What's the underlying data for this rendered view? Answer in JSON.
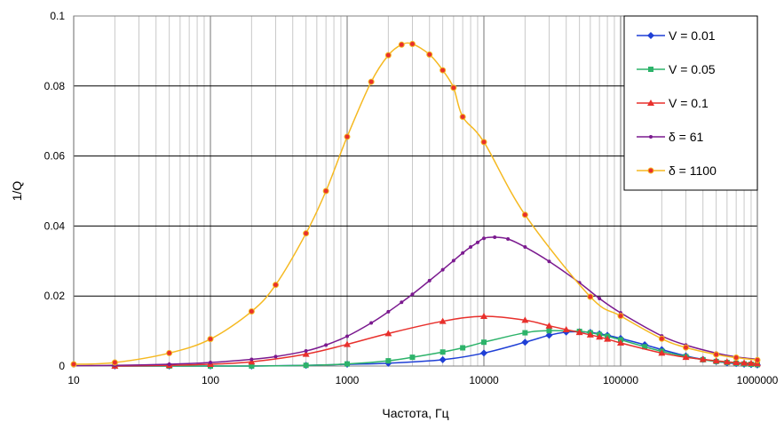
{
  "chart_data": {
    "type": "line",
    "xlabel": "Частота, Гц",
    "ylabel": "1/Q",
    "xscale": "log",
    "xlim": [
      10,
      1000000
    ],
    "ylim": [
      0,
      0.1
    ],
    "x_ticks": [
      "10",
      "100",
      "1000",
      "10000",
      "100000",
      "1000000"
    ],
    "y_ticks": [
      "0",
      "0.02",
      "0.04",
      "0.06",
      "0.08",
      "0.1"
    ],
    "grid": true,
    "legend_position": "top-right",
    "series": [
      {
        "name": "V = 0.01",
        "color": "#1f3fd6",
        "marker": "diamond",
        "x": [
          20,
          50,
          100,
          200,
          500,
          1000,
          2000,
          5000,
          10000,
          20000,
          30000,
          40000,
          50000,
          60000,
          70000,
          80000,
          100000,
          150000,
          200000,
          300000,
          400000,
          500000,
          600000,
          700000,
          800000,
          900000,
          1000000
        ],
        "y": [
          0,
          0,
          0,
          0,
          0.0002,
          0.0005,
          0.0008,
          0.0018,
          0.0037,
          0.0068,
          0.0088,
          0.0097,
          0.0098,
          0.0096,
          0.0092,
          0.0088,
          0.0079,
          0.0061,
          0.0047,
          0.0029,
          0.0019,
          0.0013,
          0.0009,
          0.0007,
          0.0005,
          0.0004,
          0.0003
        ]
      },
      {
        "name": "V = 0.05",
        "color": "#2db36a",
        "marker": "square",
        "x": [
          20,
          50,
          100,
          200,
          500,
          1000,
          2000,
          3000,
          5000,
          7000,
          10000,
          20000,
          30000,
          50000,
          60000,
          70000,
          80000,
          100000,
          150000,
          200000,
          300000,
          400000,
          500000,
          600000,
          700000,
          800000,
          900000,
          1000000
        ],
        "y": [
          0,
          0,
          0,
          0,
          0.0002,
          0.0006,
          0.0015,
          0.0025,
          0.004,
          0.0052,
          0.0068,
          0.0095,
          0.0101,
          0.0099,
          0.0095,
          0.009,
          0.0085,
          0.0075,
          0.0055,
          0.0042,
          0.0027,
          0.0018,
          0.0013,
          0.001,
          0.0008,
          0.0006,
          0.0005,
          0.0004
        ]
      },
      {
        "name": "V = 0.1",
        "color": "#e8302c",
        "marker": "triangle",
        "x": [
          20,
          50,
          100,
          200,
          500,
          1000,
          2000,
          5000,
          10000,
          20000,
          30000,
          40000,
          50000,
          60000,
          70000,
          80000,
          100000,
          200000,
          300000,
          400000,
          500000,
          600000,
          700000,
          800000,
          900000,
          1000000
        ],
        "y": [
          0,
          0.0002,
          0.0005,
          0.0012,
          0.0034,
          0.0062,
          0.0093,
          0.0128,
          0.0142,
          0.0131,
          0.0115,
          0.0104,
          0.0096,
          0.0089,
          0.0083,
          0.0077,
          0.0066,
          0.0037,
          0.0025,
          0.0019,
          0.0015,
          0.0012,
          0.001,
          0.0009,
          0.0008,
          0.0007
        ]
      },
      {
        "name": "δ = 61",
        "color": "#7b1a8f",
        "marker": "dot",
        "x": [
          10,
          20,
          50,
          100,
          200,
          300,
          500,
          700,
          1000,
          1500,
          2000,
          2500,
          3000,
          4000,
          5000,
          6000,
          7000,
          8000,
          9000,
          10000,
          12000,
          15000,
          20000,
          30000,
          50000,
          70000,
          100000,
          200000,
          300000,
          500000,
          700000,
          1000000
        ],
        "y": [
          0.0001,
          0.0002,
          0.0005,
          0.001,
          0.0019,
          0.0027,
          0.0043,
          0.006,
          0.0085,
          0.0123,
          0.0155,
          0.0182,
          0.0205,
          0.0244,
          0.0275,
          0.0301,
          0.0323,
          0.034,
          0.0353,
          0.0365,
          0.0368,
          0.0363,
          0.034,
          0.0299,
          0.0238,
          0.0193,
          0.0152,
          0.0086,
          0.006,
          0.0037,
          0.0026,
          0.0019
        ]
      },
      {
        "name": "δ = 1100",
        "color": "#f5b921",
        "marker": "circle",
        "x": [
          10,
          20,
          50,
          100,
          200,
          300,
          500,
          700,
          1000,
          1500,
          2000,
          2500,
          3000,
          4000,
          5000,
          6000,
          7000,
          10000,
          20000,
          60000,
          100000,
          200000,
          300000,
          500000,
          700000,
          1000000
        ],
        "y": [
          0.0005,
          0.001,
          0.0037,
          0.0077,
          0.0156,
          0.0232,
          0.0379,
          0.05,
          0.0655,
          0.0812,
          0.0888,
          0.0918,
          0.092,
          0.089,
          0.0845,
          0.0795,
          0.0712,
          0.064,
          0.0432,
          0.0198,
          0.0143,
          0.0078,
          0.0053,
          0.0033,
          0.0024,
          0.0017
        ]
      }
    ]
  }
}
